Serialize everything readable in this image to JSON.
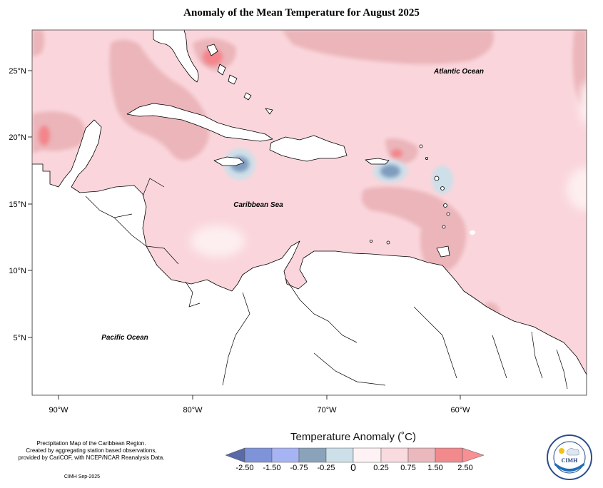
{
  "title": "Anomaly of the Mean Temperature for August 2025",
  "axes": {
    "lon_ticks": [
      "90°W",
      "80°W",
      "70°W",
      "60°W"
    ],
    "lat_ticks": [
      "25°N",
      "20°N",
      "15°N",
      "10°N",
      "5°N"
    ]
  },
  "labels": {
    "atlantic": "Atlantic Ocean",
    "caribbean": "Caribbean Sea",
    "pacific": "Pacific Ocean"
  },
  "legend": {
    "title": "Temperature Anomaly (˚C)",
    "labels": [
      "-2.50",
      "-1.50",
      "-0.75",
      "-0.25",
      "0",
      "0.25",
      "0.75",
      "1.50",
      "2.50"
    ],
    "colors": [
      "#5a6aa8",
      "#7f93d8",
      "#a6b4f4",
      "#8aa3bb",
      "#cddfe8",
      "#fff2f4",
      "#f9dade",
      "#eab8bd",
      "#f1898d",
      "#f78f94"
    ]
  },
  "footnote": {
    "line1": "Precipitation Map of the Caribbean Region.",
    "line2": "Created by aggregating station based observations,",
    "line3": "provided by CariCOF, with NCEP/NCAR Reanalysis Data.",
    "credit": "CIMH Sep-2025"
  },
  "logo": {
    "text": "CIMH",
    "ring_text": "Caribbean Institute for Meteorology and Hydrology"
  },
  "colors": {
    "base_anomaly": "#fad6dc",
    "warm_anomaly": "#ebb5ba",
    "hot_anomaly": "#f3858b",
    "near_zero": "#fdeef0",
    "cool_anomaly": "#7f9cbf",
    "land": "#ffffff"
  }
}
